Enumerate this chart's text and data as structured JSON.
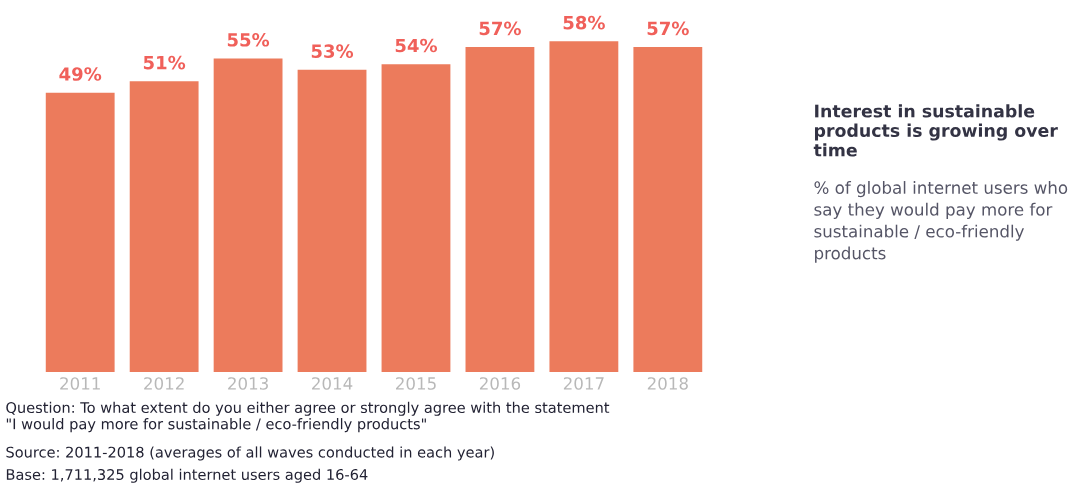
{
  "chart_data": {
    "type": "bar",
    "title": "Interest in sustainable products is growing over time",
    "subtitle": "% of global internet users who say they would pay more for sustainable / eco-friendly products",
    "categories": [
      "2011",
      "2012",
      "2013",
      "2014",
      "2015",
      "2016",
      "2017",
      "2018"
    ],
    "values": [
      49,
      51,
      55,
      53,
      54,
      57,
      58,
      57
    ],
    "value_labels": [
      "49%",
      "51%",
      "55%",
      "53%",
      "54%",
      "57%",
      "58%",
      "57%"
    ],
    "color": "#ec7b5c",
    "tick_labels": "x",
    "annotations": [
      "Question: To what extent do you either agree or strongly agree with the statement\n\"I would pay more for sustainable / eco-friendly products\"",
      "Source: 2011-2018 (averages of all waves conducted in each year)",
      "Base: 1,711,325 global internet users aged 16-64"
    ]
  }
}
